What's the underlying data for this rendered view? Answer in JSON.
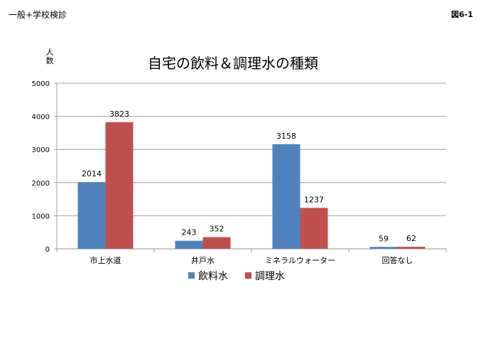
{
  "header": {
    "left_label": "一般+学校検診",
    "right_label": "図6-1"
  },
  "chart_data": {
    "type": "bar",
    "title": "自宅の飲料＆調理水の種類",
    "ylabel": "人数",
    "xlabel": "",
    "ylim": [
      0,
      5000
    ],
    "yticks": [
      0,
      1000,
      2000,
      3000,
      4000,
      5000
    ],
    "grid": true,
    "legend_position": "bottom",
    "categories": [
      "市上水道",
      "井戸水",
      "ミネラルウォーター",
      "回答なし"
    ],
    "series": [
      {
        "name": "飲料水",
        "color": "#4F81BD",
        "values": [
          2014,
          243,
          3158,
          59
        ]
      },
      {
        "name": "調理水",
        "color": "#C0504D",
        "values": [
          3823,
          352,
          1237,
          62
        ]
      }
    ]
  }
}
